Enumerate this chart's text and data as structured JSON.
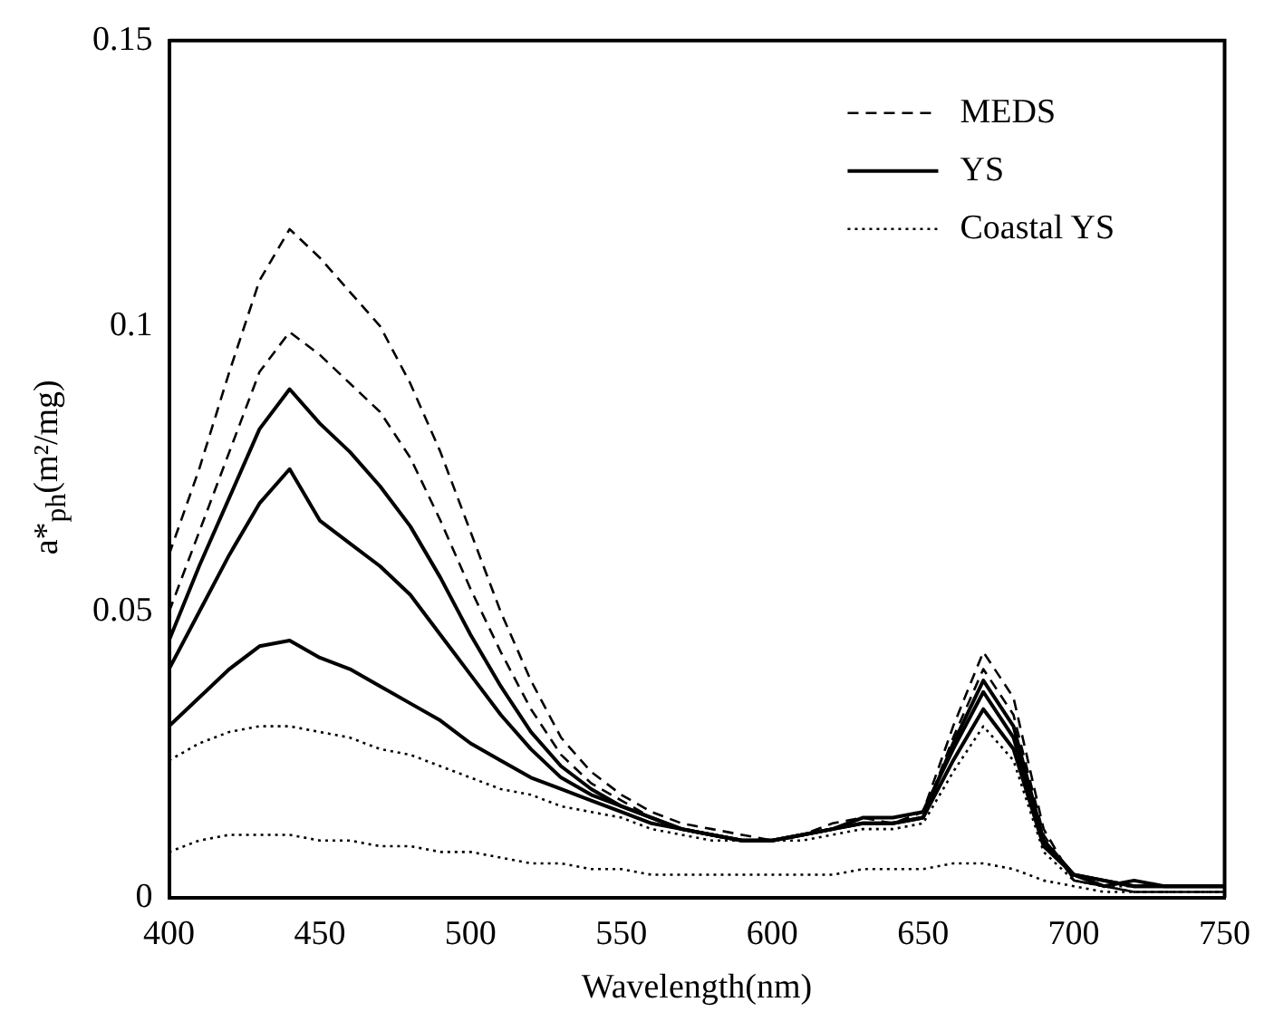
{
  "chart_data": {
    "type": "line",
    "xlabel": "Wavelength(nm)",
    "ylabel": "a*$_{ph}$(m²/mg)",
    "x": [
      400,
      410,
      420,
      430,
      440,
      450,
      460,
      470,
      480,
      490,
      500,
      510,
      520,
      530,
      540,
      550,
      560,
      570,
      580,
      590,
      600,
      610,
      620,
      630,
      640,
      650,
      660,
      670,
      680,
      690,
      700,
      710,
      720,
      730,
      740,
      750
    ],
    "xlim": [
      400,
      750
    ],
    "xticks": [
      400,
      450,
      500,
      550,
      600,
      650,
      700,
      750
    ],
    "ylim": [
      0,
      0.15
    ],
    "yticks": [
      0,
      0.05,
      0.1,
      0.15
    ],
    "legend": "top right",
    "grid": false,
    "marker": "none",
    "series": [
      {
        "name": "MEDS",
        "color": "#000000",
        "line_style": "dashed",
        "values": [
          0.06,
          0.075,
          0.092,
          0.108,
          0.117,
          0.112,
          0.106,
          0.1,
          0.09,
          0.078,
          0.064,
          0.05,
          0.038,
          0.028,
          0.022,
          0.018,
          0.015,
          0.013,
          0.012,
          0.011,
          0.01,
          0.011,
          0.013,
          0.014,
          0.013,
          0.015,
          0.03,
          0.043,
          0.035,
          0.012,
          0.003,
          0.002,
          0.001,
          0.001,
          0.001,
          0.001
        ]
      },
      {
        "color": "#000000",
        "line_style": "dashed",
        "values": [
          0.05,
          0.064,
          0.078,
          0.092,
          0.099,
          0.095,
          0.09,
          0.085,
          0.077,
          0.066,
          0.054,
          0.043,
          0.033,
          0.025,
          0.02,
          0.017,
          0.014,
          0.012,
          0.011,
          0.01,
          0.01,
          0.011,
          0.012,
          0.013,
          0.013,
          0.014,
          0.028,
          0.04,
          0.032,
          0.011,
          0.003,
          0.002,
          0.001,
          0.001,
          0.001,
          0.001
        ]
      },
      {
        "name": "YS",
        "color": "#000000",
        "line_style": "solid",
        "values": [
          0.045,
          0.058,
          0.07,
          0.082,
          0.089,
          0.083,
          0.078,
          0.072,
          0.065,
          0.056,
          0.046,
          0.037,
          0.029,
          0.023,
          0.019,
          0.016,
          0.014,
          0.012,
          0.011,
          0.01,
          0.01,
          0.011,
          0.012,
          0.013,
          0.013,
          0.014,
          0.027,
          0.038,
          0.03,
          0.01,
          0.004,
          0.002,
          0.003,
          0.002,
          0.002,
          0.002
        ]
      },
      {
        "color": "#000000",
        "line_style": "solid",
        "values": [
          0.04,
          0.05,
          0.06,
          0.069,
          0.075,
          0.066,
          0.062,
          0.058,
          0.053,
          0.046,
          0.039,
          0.032,
          0.026,
          0.021,
          0.018,
          0.016,
          0.014,
          0.012,
          0.011,
          0.01,
          0.01,
          0.011,
          0.012,
          0.014,
          0.014,
          0.015,
          0.026,
          0.036,
          0.028,
          0.01,
          0.004,
          0.003,
          0.002,
          0.002,
          0.002,
          0.002
        ]
      },
      {
        "color": "#000000",
        "line_style": "solid",
        "values": [
          0.03,
          0.035,
          0.04,
          0.044,
          0.045,
          0.042,
          0.04,
          0.037,
          0.034,
          0.031,
          0.027,
          0.024,
          0.021,
          0.019,
          0.017,
          0.015,
          0.013,
          0.012,
          0.011,
          0.01,
          0.01,
          0.011,
          0.012,
          0.013,
          0.013,
          0.014,
          0.024,
          0.033,
          0.026,
          0.009,
          0.004,
          0.003,
          0.002,
          0.002,
          0.002,
          0.002
        ]
      },
      {
        "name": "Coastal YS",
        "color": "#000000",
        "line_style": "dotted",
        "values": [
          0.024,
          0.027,
          0.029,
          0.03,
          0.03,
          0.029,
          0.028,
          0.026,
          0.025,
          0.023,
          0.021,
          0.019,
          0.018,
          0.016,
          0.015,
          0.014,
          0.012,
          0.011,
          0.01,
          0.01,
          0.01,
          0.01,
          0.011,
          0.012,
          0.012,
          0.013,
          0.022,
          0.03,
          0.024,
          0.008,
          0.003,
          0.002,
          0.002,
          0.002,
          0.002,
          0.002
        ]
      },
      {
        "color": "#000000",
        "line_style": "dotted",
        "values": [
          0.008,
          0.01,
          0.011,
          0.011,
          0.011,
          0.01,
          0.01,
          0.009,
          0.009,
          0.008,
          0.008,
          0.007,
          0.006,
          0.006,
          0.005,
          0.005,
          0.004,
          0.004,
          0.004,
          0.004,
          0.004,
          0.004,
          0.004,
          0.005,
          0.005,
          0.005,
          0.006,
          0.006,
          0.005,
          0.003,
          0.002,
          0.001,
          0.001,
          0.001,
          0.001,
          0.001
        ]
      }
    ]
  }
}
